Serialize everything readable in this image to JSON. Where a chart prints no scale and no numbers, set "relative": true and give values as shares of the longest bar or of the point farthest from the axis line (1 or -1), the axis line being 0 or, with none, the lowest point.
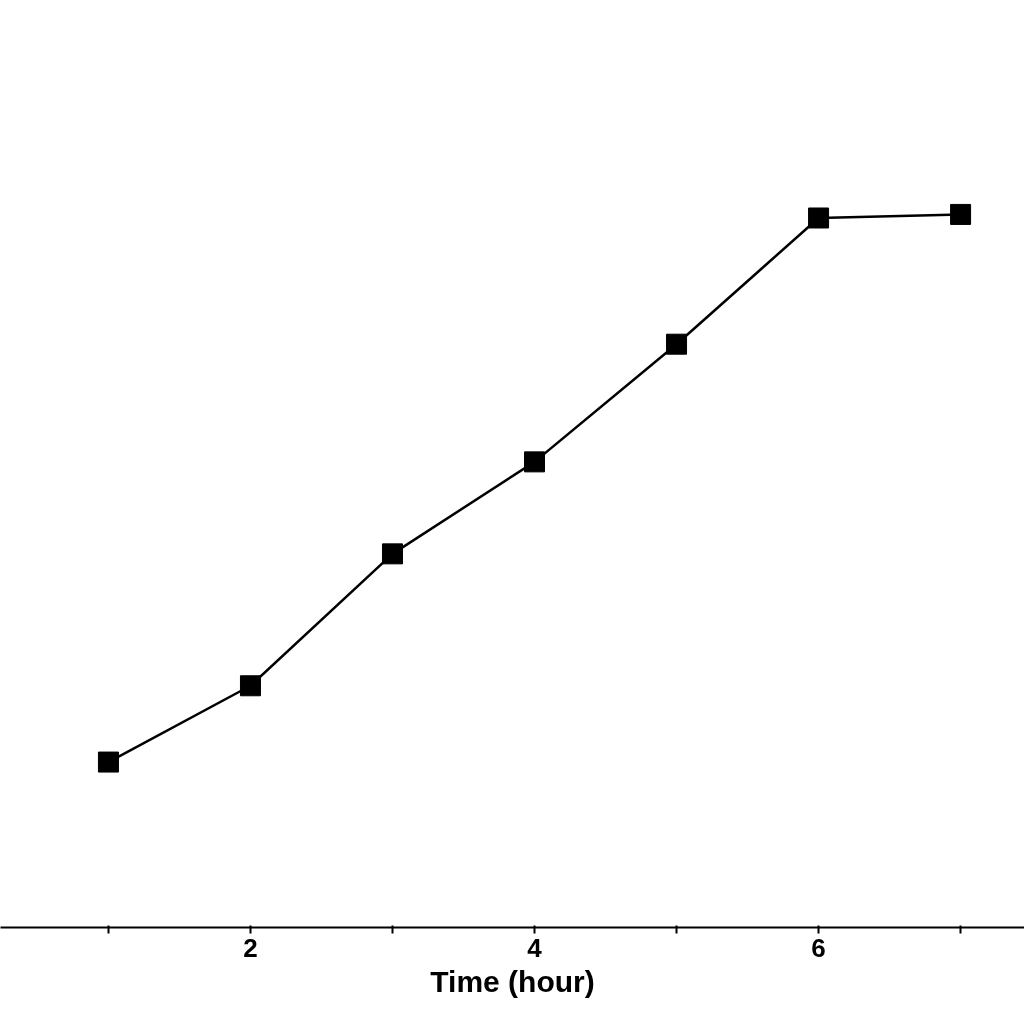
{
  "chart_data": {
    "type": "line",
    "xlabel": "Time (hour)",
    "relative": true,
    "x": [
      1,
      2,
      3,
      4,
      5,
      6,
      7
    ],
    "series": [
      {
        "color": "#000000",
        "values": [
          0.232,
          0.339,
          0.524,
          0.653,
          0.818,
          0.995,
          1.0
        ]
      }
    ],
    "xlim": [
      0.24,
      7.45
    ],
    "xticks": [
      {
        "value": 1,
        "label": null
      },
      2,
      {
        "value": 3,
        "label": null
      },
      4,
      {
        "value": 5,
        "label": null
      },
      6,
      {
        "value": 7,
        "label": null
      }
    ],
    "marker": "square",
    "line_style": "solid",
    "grid": false
  }
}
